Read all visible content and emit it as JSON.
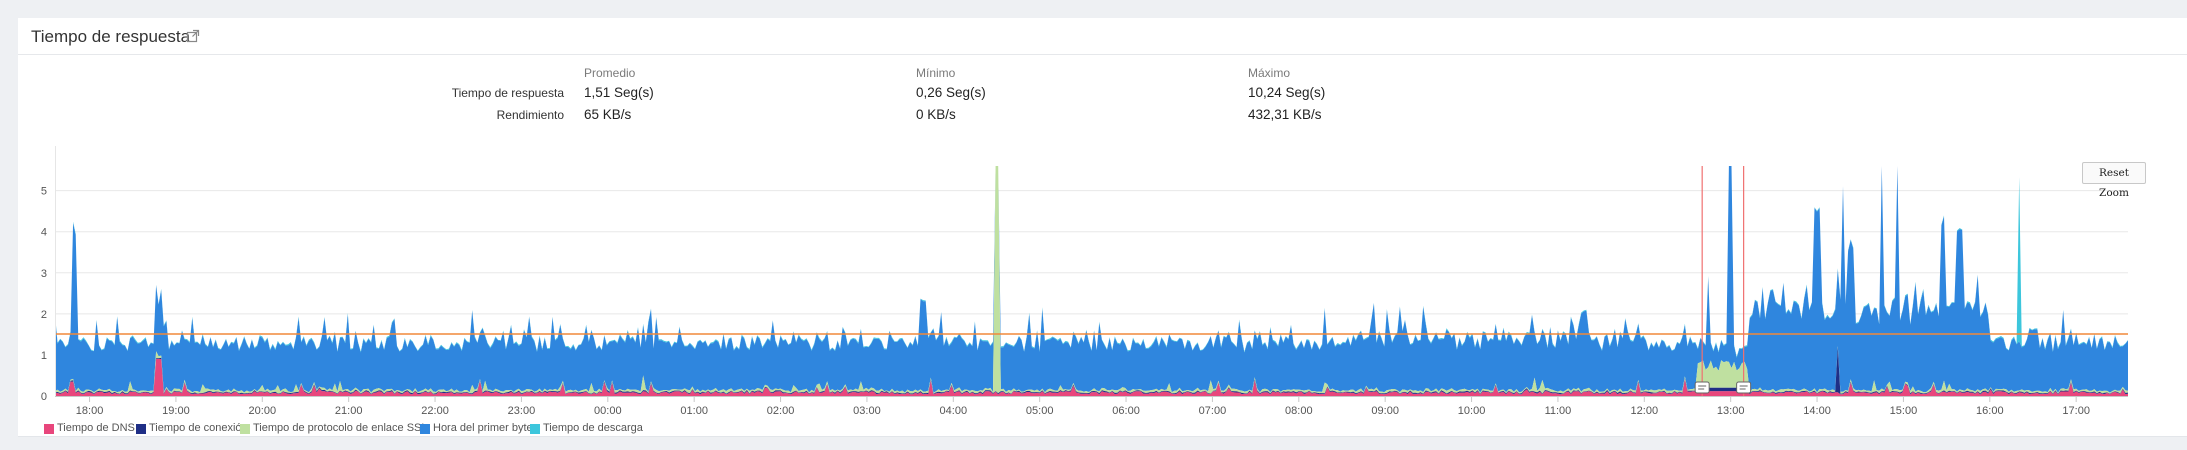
{
  "header": {
    "title": "Tiempo de respuesta",
    "link_icon": "external-link-icon"
  },
  "summary": {
    "columns": [
      "Promedio",
      "Mínimo",
      "Máximo"
    ],
    "rows": [
      {
        "label": "Tiempo de respuesta",
        "values": [
          "1,51 Seg(s)",
          "0,26 Seg(s)",
          "10,24 Seg(s)"
        ]
      },
      {
        "label": "Rendimiento",
        "values": [
          "65 KB/s",
          "0 KB/s",
          "432,31 KB/s"
        ]
      }
    ]
  },
  "reset_zoom_label": "Reset Zoom",
  "chart_data": {
    "type": "area",
    "stacked": true,
    "title": "",
    "xlabel": "",
    "ylabel": "",
    "ylim": [
      0,
      5.6
    ],
    "y_ticks": [
      0,
      1,
      2,
      3,
      4,
      5
    ],
    "x_range_hours": [
      17.6,
      41.6
    ],
    "x_tick_hours": [
      18,
      19,
      20,
      21,
      22,
      23,
      24,
      25,
      26,
      27,
      28,
      29,
      30,
      31,
      32,
      33,
      34,
      35,
      36,
      37,
      38,
      39,
      40,
      41
    ],
    "x_tick_labels": [
      "18:00",
      "19:00",
      "20:00",
      "21:00",
      "22:00",
      "23:00",
      "00:00",
      "01:00",
      "02:00",
      "03:00",
      "04:00",
      "05:00",
      "06:00",
      "07:00",
      "08:00",
      "09:00",
      "10:00",
      "11:00",
      "12:00",
      "13:00",
      "14:00",
      "15:00",
      "16:00",
      "17:00"
    ],
    "average_line": 1.51,
    "average_line_color": "#f0883a",
    "event_markers_hours": [
      36.67,
      37.15
    ],
    "event_marker_color": "#f07070",
    "grid": true,
    "legend_position": "bottom-left",
    "series": [
      {
        "name": "Tiempo de DNS",
        "color": "#e8467c",
        "base": 0.08
      },
      {
        "name": "Tiempo de conexión",
        "color": "#1f2f86",
        "base": 0.02
      },
      {
        "name": "Tiempo de protocolo de enlace SSL",
        "color": "#bfe0a0",
        "base": 0.05
      },
      {
        "name": "Hora del primer byte",
        "color": "#2f86de",
        "base": 1.0
      },
      {
        "name": "Tiempo de descarga",
        "color": "#3cc6dc",
        "base": 0.02
      }
    ]
  }
}
